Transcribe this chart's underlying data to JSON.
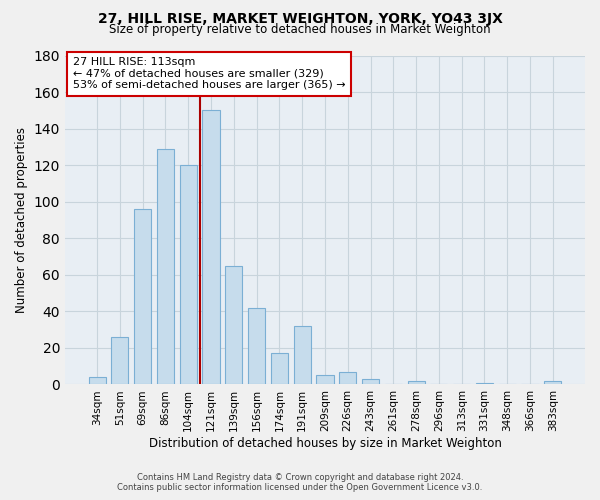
{
  "title": "27, HILL RISE, MARKET WEIGHTON, YORK, YO43 3JX",
  "subtitle": "Size of property relative to detached houses in Market Weighton",
  "xlabel": "Distribution of detached houses by size in Market Weighton",
  "ylabel": "Number of detached properties",
  "bar_labels": [
    "34sqm",
    "51sqm",
    "69sqm",
    "86sqm",
    "104sqm",
    "121sqm",
    "139sqm",
    "156sqm",
    "174sqm",
    "191sqm",
    "209sqm",
    "226sqm",
    "243sqm",
    "261sqm",
    "278sqm",
    "296sqm",
    "313sqm",
    "331sqm",
    "348sqm",
    "366sqm",
    "383sqm"
  ],
  "bar_values": [
    4,
    26,
    96,
    129,
    120,
    150,
    65,
    42,
    17,
    32,
    5,
    7,
    3,
    0,
    2,
    0,
    0,
    1,
    0,
    0,
    2
  ],
  "bar_color": "#c6dcec",
  "bar_edge_color": "#7bafd4",
  "vline_x": 4.5,
  "property_line_label": "27 HILL RISE: 113sqm",
  "annotation_line1": "← 47% of detached houses are smaller (329)",
  "annotation_line2": "53% of semi-detached houses are larger (365) →",
  "ylim": [
    0,
    180
  ],
  "yticks": [
    0,
    20,
    40,
    60,
    80,
    100,
    120,
    140,
    160,
    180
  ],
  "vline_color": "#aa0000",
  "footer_line1": "Contains HM Land Registry data © Crown copyright and database right 2024.",
  "footer_line2": "Contains public sector information licensed under the Open Government Licence v3.0.",
  "background_color": "#f0f0f0",
  "plot_background_color": "#e8eef4",
  "grid_color": "#c8d4dc"
}
